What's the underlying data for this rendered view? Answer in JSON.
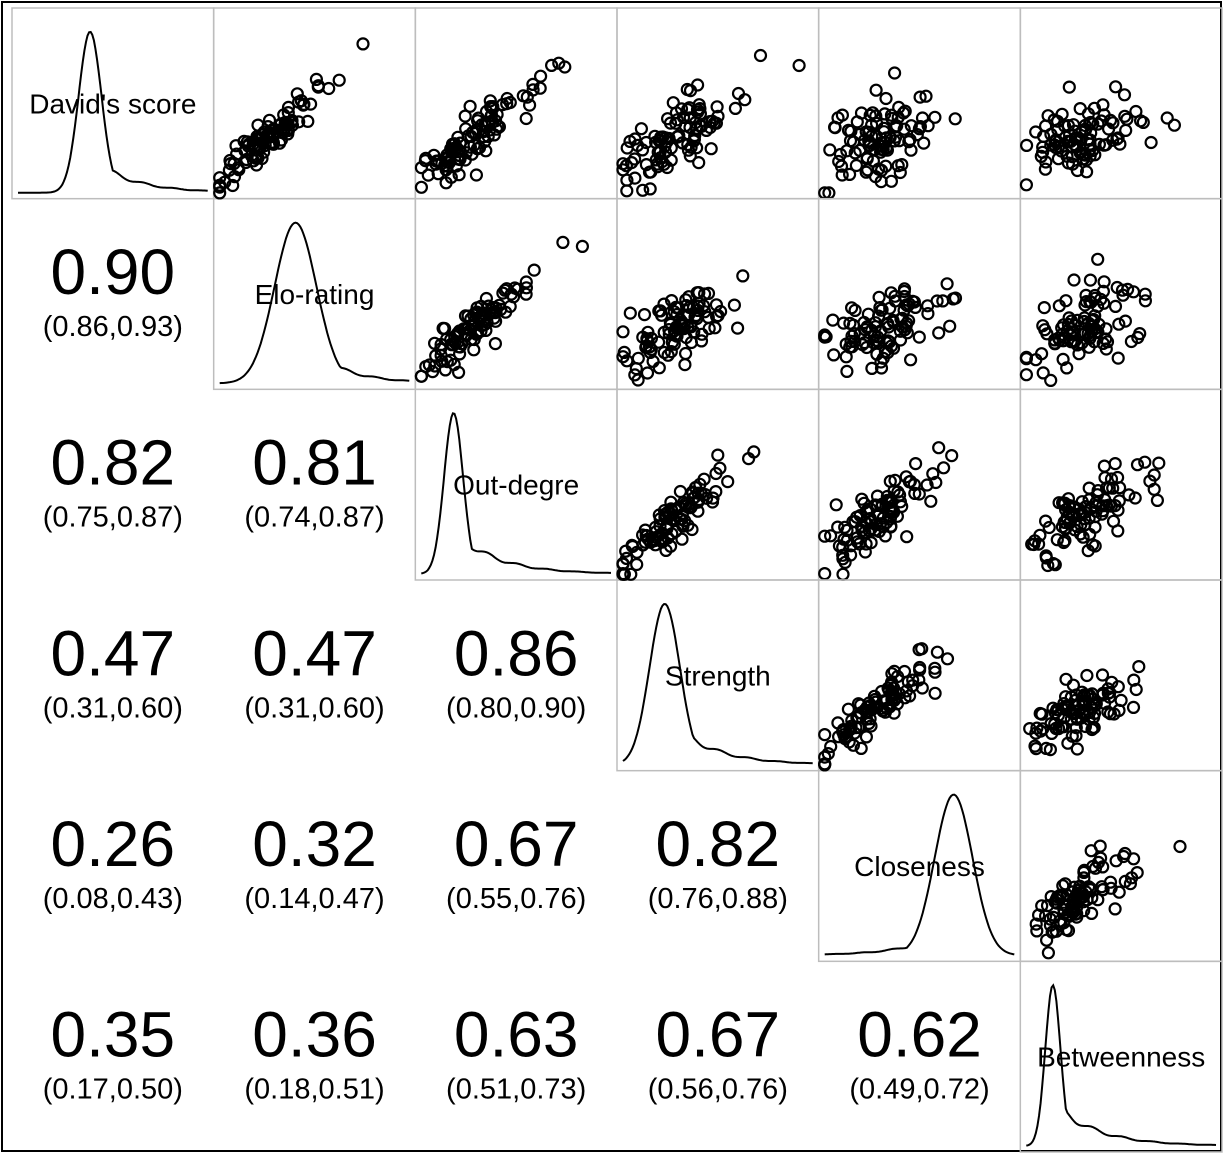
{
  "chart_data": {
    "type": "scatter",
    "variables": [
      "David's score",
      "Elo-rating",
      "Out-degre",
      "Strength",
      "Closeness",
      "Betweenness"
    ],
    "correlations": [
      {
        "row": 1,
        "col": 0,
        "r": "0.90",
        "ci": "(0.86,0.93)"
      },
      {
        "row": 2,
        "col": 0,
        "r": "0.82",
        "ci": "(0.75,0.87)"
      },
      {
        "row": 2,
        "col": 1,
        "r": "0.81",
        "ci": "(0.74,0.87)"
      },
      {
        "row": 3,
        "col": 0,
        "r": "0.47",
        "ci": "(0.31,0.60)"
      },
      {
        "row": 3,
        "col": 1,
        "r": "0.47",
        "ci": "(0.31,0.60)"
      },
      {
        "row": 3,
        "col": 2,
        "r": "0.86",
        "ci": "(0.80,0.90)"
      },
      {
        "row": 4,
        "col": 0,
        "r": "0.26",
        "ci": "(0.08,0.43)"
      },
      {
        "row": 4,
        "col": 1,
        "r": "0.32",
        "ci": "(0.14,0.47)"
      },
      {
        "row": 4,
        "col": 2,
        "r": "0.67",
        "ci": "(0.55,0.76)"
      },
      {
        "row": 4,
        "col": 3,
        "r": "0.82",
        "ci": "(0.76,0.88)"
      },
      {
        "row": 5,
        "col": 0,
        "r": "0.35",
        "ci": "(0.17,0.50)"
      },
      {
        "row": 5,
        "col": 1,
        "r": "0.36",
        "ci": "(0.18,0.51)"
      },
      {
        "row": 5,
        "col": 2,
        "r": "0.63",
        "ci": "(0.51,0.73)"
      },
      {
        "row": 5,
        "col": 3,
        "r": "0.67",
        "ci": "(0.56,0.76)"
      },
      {
        "row": 5,
        "col": 4,
        "r": "0.62",
        "ci": "(0.49,0.72)"
      }
    ],
    "diagonal": "density",
    "upper": "scatter",
    "lower": "correlation",
    "axes_visible": false,
    "grid": false
  }
}
